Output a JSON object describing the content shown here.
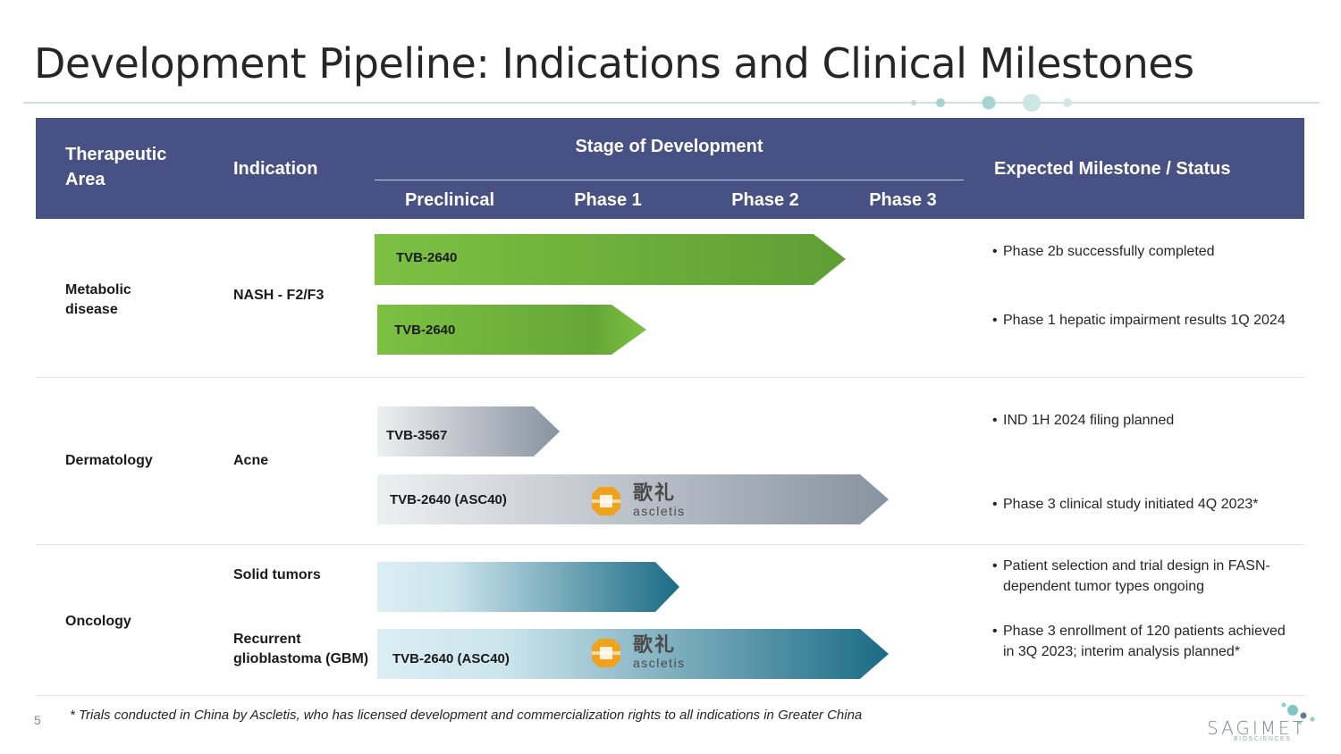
{
  "title": "Development Pipeline: Indications and Clinical Milestones",
  "header": {
    "therapeutic_area": "Therapeutic Area",
    "indication": "Indication",
    "stage_of_development": "Stage of Development",
    "stages": [
      "Preclinical",
      "Phase 1",
      "Phase 2",
      "Phase 3"
    ],
    "milestone": "Expected Milestone / Status"
  },
  "rows": {
    "metabolic": {
      "area": "Metabolic disease",
      "indication": "NASH - F2/F3",
      "programs": [
        {
          "name": "TVB-2640",
          "progress_stage_fraction": 0.8,
          "milestone": "Phase 2b successfully completed"
        },
        {
          "name": "TVB-2640",
          "progress_stage_fraction": 0.46,
          "milestone": "Phase 1 hepatic impairment results 1Q 2024"
        }
      ]
    },
    "dermatology": {
      "area": "Dermatology",
      "indication": "Acne",
      "programs": [
        {
          "name": "TVB-3567",
          "progress_stage_fraction": 0.31,
          "milestone": "IND 1H 2024 filing planned"
        },
        {
          "name": "TVB-2640 (ASC40)",
          "progress_stage_fraction": 0.87,
          "milestone": "Phase 3 clinical study initiated 4Q 2023*",
          "partner": "ascletis"
        }
      ]
    },
    "oncology": {
      "area": "Oncology",
      "indications": [
        "Solid tumors",
        "Recurrent glioblastoma (GBM)"
      ],
      "programs": [
        {
          "name": "",
          "progress_stage_fraction": 0.52,
          "milestone": "Patient selection and trial design in FASN-dependent tumor types ongoing"
        },
        {
          "name": "TVB-2640 (ASC40)",
          "progress_stage_fraction": 0.87,
          "milestone": "Phase 3 enrollment  of 120 patients achieved in 3Q 2023; interim analysis planned*",
          "partner": "ascletis"
        }
      ]
    }
  },
  "partner_logo": {
    "cn": "歌礼",
    "en": "ascletis"
  },
  "footnote": "* Trials conducted in China by Ascletis, who has licensed development and commercialization rights to all indications in Greater China",
  "page_number": "5",
  "brand": {
    "name": "SAGIMET",
    "sub": "BIOSCIENCES"
  },
  "colors": {
    "header_band": "#475183",
    "green_start": "#7cc142",
    "green_end": "#5f9e34",
    "gray_start": "#e9eaec",
    "gray_end": "#8a96a3",
    "teal_start": "#d9edf3",
    "teal_end": "#1a6b84",
    "logo_orange": "#f0a21d"
  }
}
